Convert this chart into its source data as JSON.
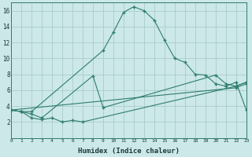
{
  "xlabel": "Humidex (Indice chaleur)",
  "background_color": "#cce8e8",
  "grid_color": "#aacccc",
  "line_color": "#2e7d6e",
  "series": [
    {
      "x": [
        0,
        1,
        2,
        9,
        10,
        11,
        12,
        13,
        14,
        15,
        16,
        17,
        18,
        19,
        20,
        21,
        22,
        23
      ],
      "y": [
        3.5,
        3.3,
        3.3,
        11.0,
        13.3,
        15.8,
        16.5,
        16.0,
        14.8,
        12.3,
        10.0,
        9.5,
        8.0,
        7.9,
        6.8,
        6.5,
        7.0,
        3.5
      ]
    },
    {
      "x": [
        0,
        1,
        2,
        3,
        8,
        9,
        20,
        21,
        22,
        23
      ],
      "y": [
        3.5,
        3.3,
        3.0,
        2.5,
        7.8,
        3.8,
        7.9,
        6.8,
        6.5,
        7.0
      ]
    },
    {
      "x": [
        0,
        1,
        2,
        3,
        4,
        5,
        6,
        7,
        22,
        23
      ],
      "y": [
        3.5,
        3.3,
        2.5,
        2.3,
        2.5,
        2.0,
        2.2,
        2.0,
        6.5,
        7.0
      ]
    },
    {
      "x": [
        0,
        22,
        23
      ],
      "y": [
        3.5,
        6.3,
        6.8
      ]
    }
  ],
  "xlim": [
    0,
    23
  ],
  "ylim": [
    0,
    17
  ],
  "yticks": [
    2,
    4,
    6,
    8,
    10,
    12,
    14,
    16
  ],
  "xticks": [
    0,
    1,
    2,
    3,
    4,
    5,
    6,
    7,
    8,
    9,
    10,
    11,
    12,
    13,
    14,
    15,
    16,
    17,
    18,
    19,
    20,
    21,
    22,
    23
  ],
  "figsize": [
    3.2,
    2.0
  ],
  "dpi": 100
}
